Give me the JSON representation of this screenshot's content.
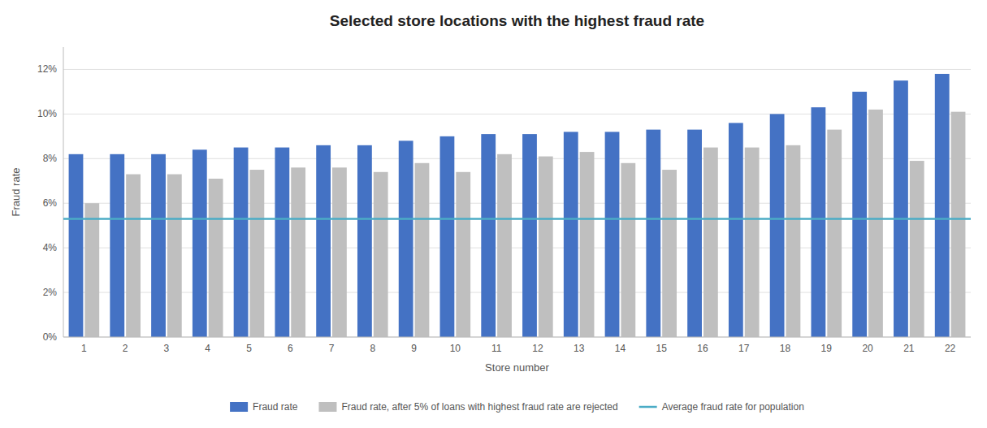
{
  "chart_data": {
    "type": "bar",
    "title": "Selected store locations with the highest fraud rate",
    "x_label": "Store number",
    "y_label": "Fraud rate",
    "categories": [
      "1",
      "2",
      "3",
      "4",
      "5",
      "6",
      "7",
      "8",
      "9",
      "10",
      "11",
      "12",
      "13",
      "14",
      "15",
      "16",
      "17",
      "18",
      "19",
      "20",
      "21",
      "22"
    ],
    "series": [
      {
        "name": "Fraud rate",
        "color": "#4472C4",
        "values": [
          0.082,
          0.082,
          0.082,
          0.084,
          0.085,
          0.085,
          0.086,
          0.086,
          0.088,
          0.09,
          0.091,
          0.091,
          0.092,
          0.092,
          0.093,
          0.093,
          0.096,
          0.1,
          0.103,
          0.11,
          0.115,
          0.118
        ]
      },
      {
        "name": "Fraud rate, after 5% of loans with highest fraud rate are rejected",
        "color": "#BFBFBF",
        "values": [
          0.06,
          0.073,
          0.073,
          0.071,
          0.075,
          0.076,
          0.076,
          0.074,
          0.078,
          0.074,
          0.082,
          0.081,
          0.083,
          0.078,
          0.075,
          0.085,
          0.085,
          0.086,
          0.093,
          0.102,
          0.079,
          0.101
        ]
      }
    ],
    "horizontal_lines": [
      {
        "name": "Average fraud rate for population",
        "color": "#4BACC6",
        "value": 0.053
      }
    ],
    "ylim": [
      0,
      0.13
    ],
    "yticks": [
      {
        "value": 0.0,
        "label": "0%"
      },
      {
        "value": 0.02,
        "label": "2%"
      },
      {
        "value": 0.04,
        "label": "4%"
      },
      {
        "value": 0.06,
        "label": "6%"
      },
      {
        "value": 0.08,
        "label": "8%"
      },
      {
        "value": 0.1,
        "label": "10%"
      },
      {
        "value": 0.12,
        "label": "12%"
      }
    ],
    "grid": true,
    "legend": "bottom"
  }
}
